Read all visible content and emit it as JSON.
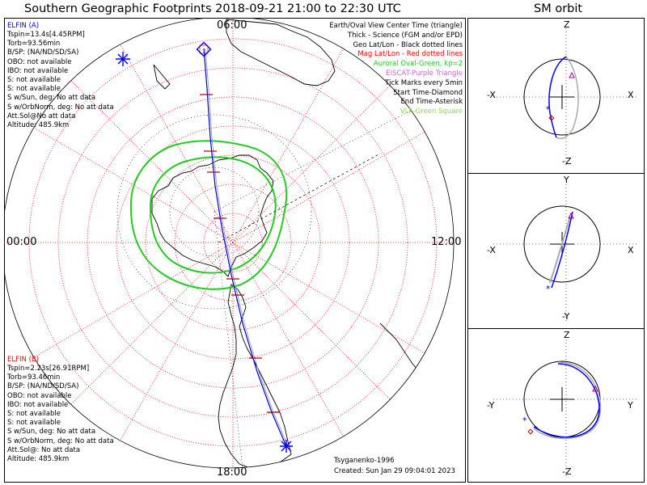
{
  "title": "Southern Geographic Footprints 2018-09-21 21:00 to 22:30 UTC",
  "sm_title": "SM orbit",
  "elfin_a": {
    "name": "ELFIN (A)",
    "lines": [
      "Tspin=13.4s[4.45RPM]",
      "Torb=93.56min",
      "B/SP: (NA/ND/SD/SA)",
      "OBO: not available",
      "IBO: not available",
      "S: not available",
      "S: not available",
      "S w/Sun, deg: No att data",
      "S w/OrbNorm, deg: No att data",
      "Att.Sol@No att data",
      "Altitude: 485.9km"
    ]
  },
  "elfin_b": {
    "name": "ELFIN (B)",
    "lines": [
      "Tspin=2.23s[26.91RPM]",
      "Torb=93.46min",
      "B/SP: (NA/ND/SD/SA)",
      "OBO: not available",
      "IBO: not available",
      "S: not available",
      "S: not available",
      "S w/Sun, deg: No att data",
      "S w/OrbNorm, deg: No att data",
      "Att.Sol@: No att data",
      "Altitude: 485.9km"
    ]
  },
  "legend": [
    {
      "text": "Earth/Oval View Center Time (triangle)",
      "color": "#000000"
    },
    {
      "text": "Thick - Science (FGM and/or EPD)",
      "color": "#000000"
    },
    {
      "text": "Geo Lat/Lon - Black dotted lines",
      "color": "#000000"
    },
    {
      "text": "Mag Lat/Lon - Red dotted lines",
      "color": "#ff0000"
    },
    {
      "text": "Auroral Oval-Green, kp=2",
      "color": "#22cc22"
    },
    {
      "text": "EISCAT-Purple Triangle",
      "color": "#cc66cc"
    },
    {
      "text": "Tick Marks every 5min",
      "color": "#000000"
    },
    {
      "text": "Start Time-Diamond",
      "color": "#000000"
    },
    {
      "text": "End Time-Asterisk",
      "color": "#000000"
    },
    {
      "text": "VLF-Green Square",
      "color": "#88dd44"
    }
  ],
  "map_labels": {
    "top": "06:00",
    "left": "00:00",
    "right": "12:00",
    "bottom": "18:00"
  },
  "credit": {
    "model": "Tsyganenko-1996",
    "created": "Created: Sun Jan 29 09:04:01 2023"
  },
  "sm_panels": [
    {
      "top": "Z",
      "bottom": "-Z",
      "left": "-X",
      "right": "X"
    },
    {
      "top": "Y",
      "bottom": "-Y",
      "left": "-X",
      "right": "X"
    },
    {
      "top": "Z",
      "bottom": "-Z",
      "left": "-Y",
      "right": "Y"
    }
  ],
  "colors": {
    "elfin_a": "#0000ff",
    "elfin_b": "#ff0000",
    "mag_grid": "#ff0000",
    "oval": "#22cc22",
    "track": "#0000cc"
  }
}
